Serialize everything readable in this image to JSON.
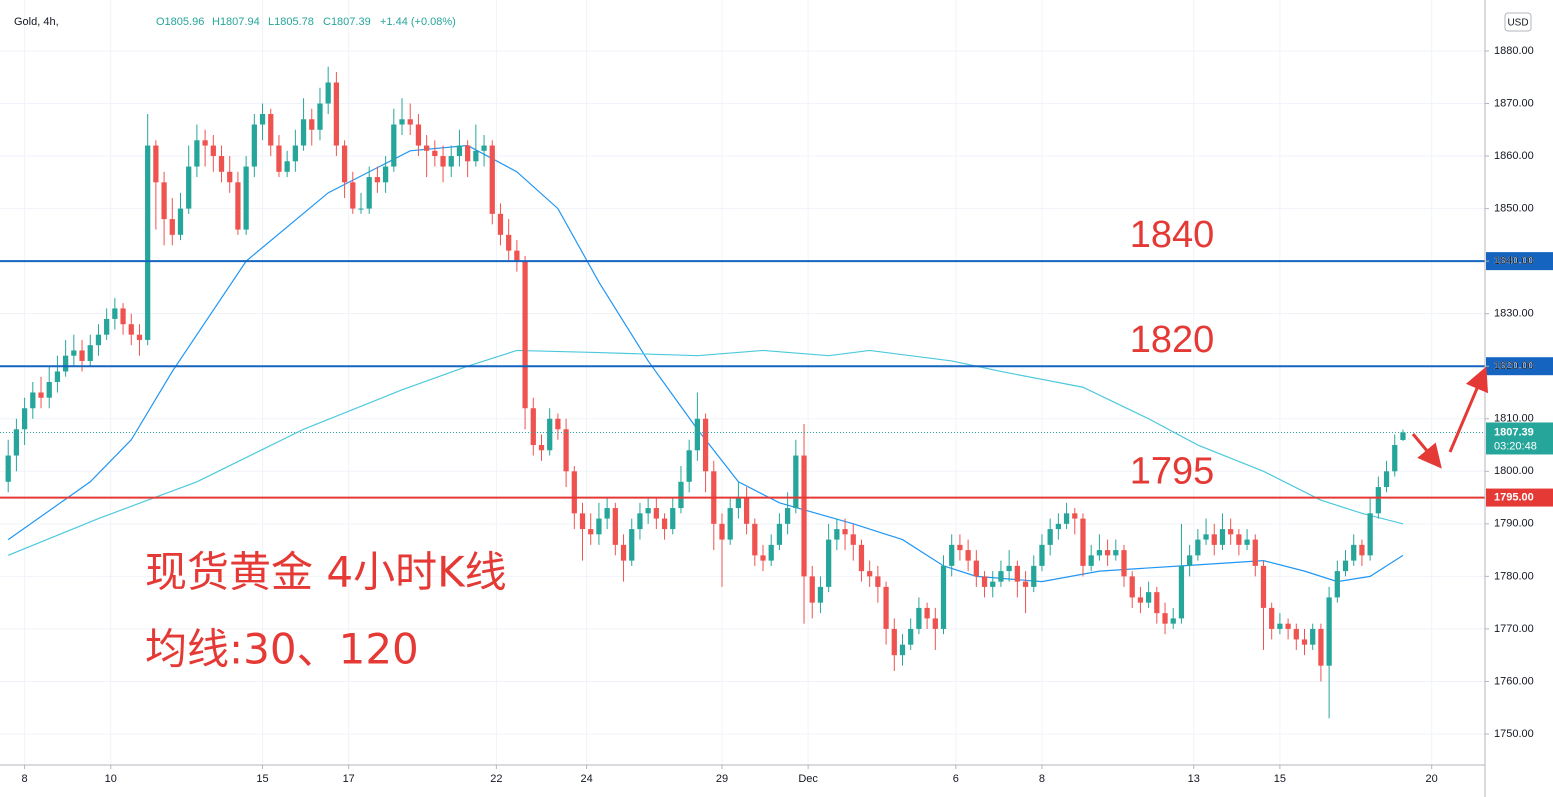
{
  "chart_data": {
    "type": "candlestick",
    "header": {
      "symbol": "Gold, 4h, ",
      "open": "O1805.96",
      "high": "H1807.94",
      "low": "L1805.78",
      "close": "C1807.39",
      "change": "+1.44 (+0.08%)",
      "currency": "USD"
    },
    "annotations": [
      "现货黄金 4小时K线",
      "均线:30、120"
    ],
    "up_color": "#26a69a",
    "down_color": "#ef5350",
    "ylim": [
      1744.1,
      1889.7
    ],
    "yticks": [
      {
        "value": 1750,
        "label": "1750.00"
      },
      {
        "value": 1760,
        "label": "1760.00"
      },
      {
        "value": 1770,
        "label": "1770.00"
      },
      {
        "value": 1780,
        "label": "1780.00"
      },
      {
        "value": 1790,
        "label": "1790.00"
      },
      {
        "value": 1800,
        "label": "1800.00"
      },
      {
        "value": 1810,
        "label": "1810.00"
      },
      {
        "value": 1820,
        "label": "1820.00"
      },
      {
        "value": 1830,
        "label": "1830.00"
      },
      {
        "value": 1840,
        "label": "1840.00"
      },
      {
        "value": 1850,
        "label": "1850.00"
      },
      {
        "value": 1860,
        "label": "1860.00"
      },
      {
        "value": 1870,
        "label": "1870.00"
      },
      {
        "value": 1880,
        "label": "1880.00"
      }
    ],
    "xlim": [
      -1,
      180
    ],
    "xticks": [
      {
        "value": 2,
        "label": "8"
      },
      {
        "value": 12.5,
        "label": "10"
      },
      {
        "value": 31,
        "label": "15"
      },
      {
        "value": 41.5,
        "label": "17"
      },
      {
        "value": 59.5,
        "label": "22"
      },
      {
        "value": 70.5,
        "label": "24"
      },
      {
        "value": 87,
        "label": "29"
      },
      {
        "value": 97.5,
        "label": "Dec"
      },
      {
        "value": 115.5,
        "label": "6"
      },
      {
        "value": 126,
        "label": "8"
      },
      {
        "value": 144.5,
        "label": "13"
      },
      {
        "value": 155,
        "label": "15"
      },
      {
        "value": 173.5,
        "label": "20"
      }
    ],
    "grid": true,
    "levels": [
      {
        "value": 1840,
        "label": "1840.00",
        "annotation": "1840",
        "color": "#1565c0"
      },
      {
        "value": 1820,
        "label": "1820.00",
        "annotation": "1820",
        "color": "#1565c0"
      },
      {
        "value": 1795,
        "label": "1795.00",
        "annotation": "1795",
        "color": "#e53935"
      }
    ],
    "last_price": {
      "value": 1807.39,
      "label": "1807.39",
      "countdown": "03:20:48",
      "color": "#26a69a"
    },
    "moving_averages": [
      {
        "color": "#2196f3",
        "x": [
          0,
          10,
          15,
          20,
          29,
          39,
          49,
          56,
          62,
          67,
          72,
          78,
          84,
          89,
          94,
          103,
          109,
          114,
          118,
          126,
          133,
          143,
          153,
          158,
          162,
          166,
          170
        ],
        "values": [
          1787,
          1798,
          1806,
          1819,
          1840,
          1853,
          1861,
          1862,
          1857,
          1850,
          1836,
          1821,
          1808,
          1798,
          1794,
          1790,
          1787,
          1782,
          1780,
          1779,
          1781,
          1782,
          1783,
          1781,
          1779,
          1780,
          1784
        ]
      },
      {
        "color": "#4dc9dd",
        "x": [
          0,
          11,
          23,
          36,
          48,
          56,
          62,
          72,
          84,
          92,
          100,
          105,
          115,
          121,
          131,
          139,
          145,
          153,
          160,
          165,
          170
        ],
        "values": [
          1784,
          1791,
          1798,
          1808,
          1815.5,
          1820,
          1823,
          1822.6,
          1822,
          1823,
          1822,
          1823,
          1821,
          1819,
          1816,
          1810,
          1805,
          1800,
          1794.5,
          1792,
          1790
        ]
      }
    ],
    "ohlc": [
      [
        1798,
        1806,
        1796,
        1803
      ],
      [
        1803,
        1810,
        1800,
        1808
      ],
      [
        1808,
        1814,
        1805,
        1812
      ],
      [
        1812,
        1817,
        1810,
        1815
      ],
      [
        1815,
        1818,
        1812,
        1814
      ],
      [
        1814,
        1820,
        1812,
        1817
      ],
      [
        1817,
        1822,
        1815,
        1819
      ],
      [
        1819,
        1825,
        1818,
        1822
      ],
      [
        1822,
        1826,
        1820,
        1823
      ],
      [
        1823,
        1825,
        1819,
        1821
      ],
      [
        1821,
        1826,
        1820,
        1824
      ],
      [
        1824,
        1828,
        1822,
        1826
      ],
      [
        1826,
        1831,
        1825,
        1829
      ],
      [
        1829,
        1833,
        1827,
        1831
      ],
      [
        1831,
        1832,
        1826,
        1828
      ],
      [
        1828,
        1830,
        1824,
        1826
      ],
      [
        1826,
        1828,
        1822,
        1825
      ],
      [
        1825,
        1868,
        1824,
        1862
      ],
      [
        1862,
        1863,
        1846,
        1855
      ],
      [
        1855,
        1857,
        1843,
        1848
      ],
      [
        1848,
        1852,
        1843,
        1845
      ],
      [
        1845,
        1853,
        1844,
        1850
      ],
      [
        1850,
        1862,
        1849,
        1858
      ],
      [
        1858,
        1866,
        1856,
        1863
      ],
      [
        1863,
        1865,
        1858,
        1862
      ],
      [
        1862,
        1864,
        1857,
        1860
      ],
      [
        1860,
        1862,
        1855,
        1857
      ],
      [
        1857,
        1860,
        1853,
        1855
      ],
      [
        1855,
        1857,
        1845,
        1846
      ],
      [
        1846,
        1860,
        1845,
        1858
      ],
      [
        1858,
        1868,
        1856,
        1866
      ],
      [
        1866,
        1870,
        1863,
        1868
      ],
      [
        1868,
        1869,
        1860,
        1862
      ],
      [
        1862,
        1864,
        1856,
        1857
      ],
      [
        1857,
        1861,
        1856,
        1859
      ],
      [
        1859,
        1865,
        1857,
        1862
      ],
      [
        1862,
        1871,
        1861,
        1867
      ],
      [
        1867,
        1869,
        1862,
        1865
      ],
      [
        1865,
        1873,
        1863,
        1870
      ],
      [
        1870,
        1877,
        1868,
        1874
      ],
      [
        1874,
        1876,
        1860,
        1862
      ],
      [
        1862,
        1863,
        1852,
        1855
      ],
      [
        1855,
        1857,
        1849,
        1850
      ],
      [
        1850,
        1853,
        1849,
        1850
      ],
      [
        1850,
        1858,
        1849,
        1856
      ],
      [
        1856,
        1858,
        1853,
        1855
      ],
      [
        1855,
        1860,
        1853,
        1858
      ],
      [
        1858,
        1869,
        1857,
        1866
      ],
      [
        1866,
        1871,
        1864,
        1867
      ],
      [
        1867,
        1870,
        1864,
        1866
      ],
      [
        1866,
        1868,
        1860,
        1862
      ],
      [
        1862,
        1864,
        1856,
        1861
      ],
      [
        1861,
        1863,
        1858,
        1860
      ],
      [
        1860,
        1862,
        1855,
        1858
      ],
      [
        1858,
        1862,
        1856,
        1860
      ],
      [
        1860,
        1865,
        1858,
        1862
      ],
      [
        1862,
        1863,
        1856,
        1859
      ],
      [
        1859,
        1866,
        1858,
        1861
      ],
      [
        1861,
        1864,
        1858,
        1862
      ],
      [
        1862,
        1863,
        1847,
        1849
      ],
      [
        1849,
        1851,
        1843,
        1845
      ],
      [
        1845,
        1848,
        1840,
        1842
      ],
      [
        1842,
        1844,
        1838,
        1840
      ],
      [
        1840,
        1841,
        1808,
        1812
      ],
      [
        1812,
        1814,
        1803,
        1805
      ],
      [
        1805,
        1807,
        1802,
        1804
      ],
      [
        1804,
        1812,
        1803,
        1810
      ],
      [
        1810,
        1811,
        1806,
        1808
      ],
      [
        1808,
        1810,
        1797,
        1800
      ],
      [
        1800,
        1801,
        1789,
        1792
      ],
      [
        1792,
        1794,
        1783,
        1789
      ],
      [
        1789,
        1792,
        1786,
        1788
      ],
      [
        1788,
        1794,
        1786,
        1791
      ],
      [
        1791,
        1795,
        1789,
        1793
      ],
      [
        1793,
        1794,
        1784,
        1786
      ],
      [
        1786,
        1788,
        1779,
        1783
      ],
      [
        1783,
        1791,
        1782,
        1789
      ],
      [
        1789,
        1794,
        1787,
        1792
      ],
      [
        1792,
        1795,
        1790,
        1793
      ],
      [
        1793,
        1795,
        1789,
        1791
      ],
      [
        1791,
        1792,
        1787,
        1789
      ],
      [
        1789,
        1795,
        1788,
        1793
      ],
      [
        1793,
        1801,
        1792,
        1798
      ],
      [
        1798,
        1806,
        1796,
        1804
      ],
      [
        1804,
        1815,
        1802,
        1810
      ],
      [
        1810,
        1811,
        1796,
        1800
      ],
      [
        1800,
        1802,
        1785,
        1790
      ],
      [
        1790,
        1792,
        1778,
        1787
      ],
      [
        1787,
        1795,
        1786,
        1793
      ],
      [
        1793,
        1798,
        1791,
        1795
      ],
      [
        1795,
        1797,
        1788,
        1790
      ],
      [
        1790,
        1791,
        1782,
        1784
      ],
      [
        1784,
        1786,
        1781,
        1783
      ],
      [
        1783,
        1788,
        1782,
        1786
      ],
      [
        1786,
        1792,
        1785,
        1790
      ],
      [
        1790,
        1796,
        1788,
        1793
      ],
      [
        1793,
        1806,
        1792,
        1803
      ],
      [
        1803,
        1809,
        1771,
        1780
      ],
      [
        1780,
        1782,
        1772,
        1775
      ],
      [
        1775,
        1780,
        1773,
        1778
      ],
      [
        1778,
        1790,
        1777,
        1787
      ],
      [
        1787,
        1791,
        1785,
        1789
      ],
      [
        1789,
        1791,
        1785,
        1788
      ],
      [
        1788,
        1790,
        1783,
        1786
      ],
      [
        1786,
        1787,
        1779,
        1781
      ],
      [
        1781,
        1783,
        1778,
        1780
      ],
      [
        1780,
        1782,
        1775,
        1778
      ],
      [
        1778,
        1779,
        1767,
        1770
      ],
      [
        1770,
        1772,
        1762,
        1765
      ],
      [
        1765,
        1769,
        1763,
        1767
      ],
      [
        1767,
        1772,
        1766,
        1770
      ],
      [
        1770,
        1776,
        1769,
        1774
      ],
      [
        1774,
        1775,
        1770,
        1772
      ],
      [
        1772,
        1774,
        1766,
        1770
      ],
      [
        1770,
        1784,
        1769,
        1782
      ],
      [
        1782,
        1788,
        1780,
        1786
      ],
      [
        1786,
        1788,
        1783,
        1785
      ],
      [
        1785,
        1787,
        1781,
        1783
      ],
      [
        1783,
        1785,
        1778,
        1780
      ],
      [
        1780,
        1781,
        1776,
        1778
      ],
      [
        1778,
        1781,
        1776,
        1779
      ],
      [
        1779,
        1783,
        1778,
        1781
      ],
      [
        1781,
        1785,
        1779,
        1782
      ],
      [
        1782,
        1783,
        1776,
        1779
      ],
      [
        1779,
        1781,
        1773,
        1778
      ],
      [
        1778,
        1784,
        1777,
        1782
      ],
      [
        1782,
        1788,
        1781,
        1786
      ],
      [
        1786,
        1791,
        1784,
        1789
      ],
      [
        1789,
        1792,
        1787,
        1790
      ],
      [
        1790,
        1794,
        1789,
        1792
      ],
      [
        1792,
        1793,
        1788,
        1791
      ],
      [
        1791,
        1792,
        1780,
        1782
      ],
      [
        1782,
        1786,
        1781,
        1784
      ],
      [
        1784,
        1788,
        1783,
        1785
      ],
      [
        1785,
        1787,
        1782,
        1784
      ],
      [
        1784,
        1787,
        1783,
        1785
      ],
      [
        1785,
        1786,
        1778,
        1780
      ],
      [
        1780,
        1781,
        1774,
        1776
      ],
      [
        1776,
        1778,
        1773,
        1775
      ],
      [
        1775,
        1779,
        1774,
        1777
      ],
      [
        1777,
        1778,
        1771,
        1773
      ],
      [
        1773,
        1775,
        1769,
        1771
      ],
      [
        1771,
        1774,
        1770,
        1772
      ],
      [
        1772,
        1790,
        1771,
        1782
      ],
      [
        1782,
        1786,
        1780,
        1784
      ],
      [
        1784,
        1789,
        1783,
        1787
      ],
      [
        1787,
        1791,
        1786,
        1788
      ],
      [
        1788,
        1790,
        1784,
        1786
      ],
      [
        1786,
        1792,
        1785,
        1789
      ],
      [
        1789,
        1791,
        1786,
        1788
      ],
      [
        1788,
        1789,
        1784,
        1786
      ],
      [
        1786,
        1789,
        1785,
        1787
      ],
      [
        1787,
        1788,
        1780,
        1782
      ],
      [
        1782,
        1783,
        1766,
        1774
      ],
      [
        1774,
        1775,
        1768,
        1770
      ],
      [
        1770,
        1773,
        1769,
        1771
      ],
      [
        1771,
        1772,
        1768,
        1770
      ],
      [
        1770,
        1771,
        1766,
        1768
      ],
      [
        1768,
        1770,
        1765,
        1767
      ],
      [
        1767,
        1771,
        1766,
        1770
      ],
      [
        1770,
        1771,
        1760,
        1763
      ],
      [
        1763,
        1778,
        1753,
        1776
      ],
      [
        1776,
        1783,
        1775,
        1781
      ],
      [
        1781,
        1785,
        1780,
        1783
      ],
      [
        1783,
        1788,
        1782,
        1786
      ],
      [
        1786,
        1787,
        1782,
        1784
      ],
      [
        1784,
        1795,
        1783,
        1792
      ],
      [
        1792,
        1799,
        1791,
        1797
      ],
      [
        1797,
        1802,
        1796,
        1800
      ],
      [
        1800,
        1807,
        1799,
        1805
      ],
      [
        1805.96,
        1807.94,
        1805.78,
        1807.39
      ]
    ]
  }
}
